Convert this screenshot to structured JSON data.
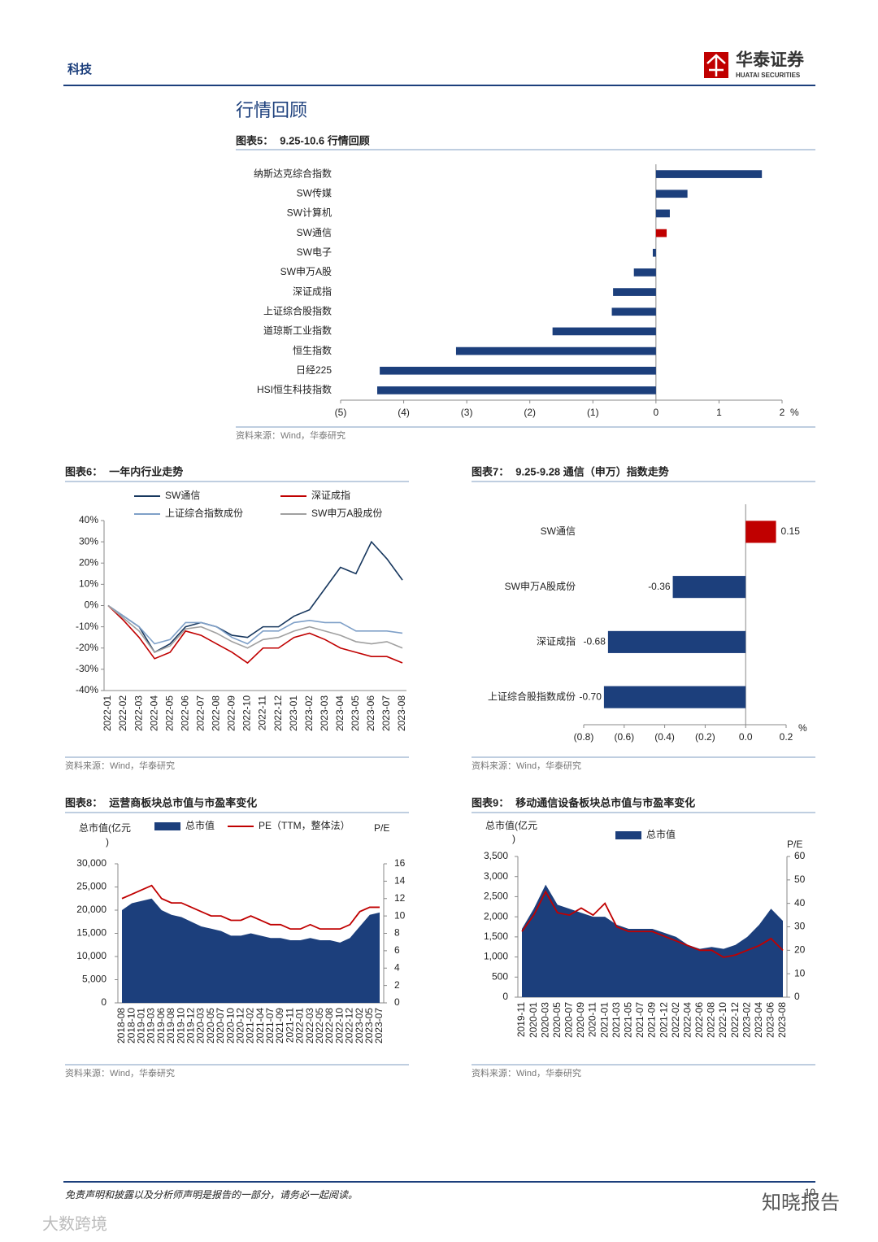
{
  "header": {
    "section": "科技",
    "company": "华泰证券",
    "company_en": "HUATAI SECURITIES"
  },
  "section_title": "行情回顾",
  "chart_data": [
    {
      "type": "bar",
      "horizontal": true,
      "label": "图表5：",
      "title": "9.25-10.6 行情回顾",
      "source": "资料来源：Wind，华泰研究",
      "categories": [
        "纳斯达克综合指数",
        "SW传媒",
        "SW计算机",
        "SW通信",
        "SW电子",
        "SW申万A股",
        "深证成指",
        "上证综合股指数",
        "道琼斯工业指数",
        "恒生指数",
        "日经225",
        "HSI恒生科技指数"
      ],
      "values": [
        1.68,
        0.5,
        0.22,
        0.17,
        -0.05,
        -0.35,
        -0.68,
        -0.7,
        -1.64,
        -3.17,
        -4.38,
        -4.42
      ],
      "colors": [
        "#1c3f7c",
        "#1c3f7c",
        "#1c3f7c",
        "#c00000",
        "#1c3f7c",
        "#1c3f7c",
        "#1c3f7c",
        "#1c3f7c",
        "#1c3f7c",
        "#1c3f7c",
        "#1c3f7c",
        "#1c3f7c"
      ],
      "xlim": [
        -5,
        2
      ],
      "xticks": [
        {
          "value": -5,
          "label": "(5)"
        },
        {
          "value": -4,
          "label": "(4)"
        },
        {
          "value": -3,
          "label": "(3)"
        },
        {
          "value": -2,
          "label": "(2)"
        },
        {
          "value": -1,
          "label": "(1)"
        },
        0,
        1,
        2
      ],
      "x_unit": "%"
    },
    {
      "type": "line",
      "label": "图表6：",
      "title": "一年内行业走势",
      "source": "资料来源：Wind，华泰研究",
      "x": [
        "2022-01",
        "2022-02",
        "2022-03",
        "2022-04",
        "2022-05",
        "2022-06",
        "2022-07",
        "2022-08",
        "2022-09",
        "2022-10",
        "2022-11",
        "2022-12",
        "2023-01",
        "2023-02",
        "2023-03",
        "2023-04",
        "2023-05",
        "2023-06",
        "2023-07",
        "2023-08"
      ],
      "series": [
        {
          "name": "SW通信",
          "color": "#17375e",
          "values": [
            0,
            -5,
            -10,
            -22,
            -18,
            -10,
            -8,
            -10,
            -14,
            -15,
            -10,
            -10,
            -5,
            -2,
            8,
            18,
            15,
            30,
            22,
            12
          ]
        },
        {
          "name": "深证成指",
          "color": "#c00000",
          "values": [
            0,
            -7,
            -15,
            -25,
            -22,
            -12,
            -14,
            -18,
            -22,
            -27,
            -20,
            -20,
            -15,
            -13,
            -16,
            -20,
            -22,
            -24,
            -24,
            -27
          ]
        },
        {
          "name": "上证综合指数成份",
          "color": "#7fa0c8",
          "values": [
            0,
            -5,
            -10,
            -18,
            -16,
            -8,
            -8,
            -10,
            -15,
            -18,
            -12,
            -12,
            -8,
            -7,
            -8,
            -8,
            -12,
            -12,
            -12,
            -13
          ]
        },
        {
          "name": "SW申万A股成份",
          "color": "#a0a0a0",
          "values": [
            0,
            -6,
            -12,
            -22,
            -19,
            -11,
            -10,
            -13,
            -17,
            -20,
            -16,
            -15,
            -12,
            -10,
            -12,
            -14,
            -17,
            -18,
            -17,
            -20
          ]
        }
      ],
      "ylim": [
        -40,
        40
      ],
      "yticks": [
        {
          "value": -40,
          "label": "-40%"
        },
        {
          "value": -30,
          "label": "-30%"
        },
        {
          "value": -20,
          "label": "-20%"
        },
        {
          "value": -10,
          "label": "-10%"
        },
        {
          "value": 0,
          "label": "0%"
        },
        {
          "value": 10,
          "label": "10%"
        },
        {
          "value": 20,
          "label": "20%"
        },
        {
          "value": 30,
          "label": "30%"
        },
        {
          "value": 40,
          "label": "40%"
        }
      ]
    },
    {
      "type": "bar",
      "horizontal": true,
      "label": "图表7：",
      "title": "9.25-9.28 通信（申万）指数走势",
      "source": "资料来源：Wind，华泰研究",
      "categories": [
        "SW通信",
        "SW申万A股成份",
        "深证成指",
        "上证综合股指数成份"
      ],
      "values": [
        0.15,
        -0.36,
        -0.68,
        -0.7
      ],
      "value_labels": [
        "0.15",
        "-0.36",
        "-0.68",
        "-0.70"
      ],
      "colors": [
        "#c00000",
        "#1c3f7c",
        "#1c3f7c",
        "#1c3f7c"
      ],
      "xlim": [
        -0.8,
        0.2
      ],
      "xticks": [
        {
          "value": -0.8,
          "label": "(0.8)"
        },
        {
          "value": -0.6,
          "label": "(0.6)"
        },
        {
          "value": -0.4,
          "label": "(0.4)"
        },
        {
          "value": -0.2,
          "label": "(0.2)"
        },
        {
          "value": 0,
          "label": "0.0"
        },
        0.2
      ],
      "x_unit": "%"
    },
    {
      "type": "area",
      "label": "图表8：",
      "title": "运营商板块总市值与市盈率变化",
      "source": "资料来源：Wind，华泰研究",
      "y_label": "总市值(亿元",
      "y_label_end": ")",
      "y2_label": "P/E",
      "x": [
        "2018-08",
        "2018-10",
        "2019-01",
        "2019-03",
        "2019-06",
        "2019-08",
        "2019-10",
        "2019-12",
        "2020-03",
        "2020-05",
        "2020-07",
        "2020-10",
        "2020-12",
        "2021-02",
        "2021-04",
        "2021-07",
        "2021-09",
        "2021-11",
        "2022-01",
        "2022-03",
        "2022-05",
        "2022-08",
        "2022-10",
        "2022-12",
        "2023-02",
        "2023-05",
        "2023-07"
      ],
      "series": [
        {
          "name": "总市值",
          "type": "area",
          "color": "#1c3f7c",
          "values": [
            20000,
            21500,
            22000,
            22500,
            20000,
            19000,
            18500,
            17500,
            16500,
            16000,
            15500,
            14500,
            14500,
            15000,
            14500,
            14000,
            14000,
            13500,
            13500,
            14000,
            13500,
            13500,
            13000,
            14000,
            16500,
            19000,
            19500
          ]
        },
        {
          "name": "PE（TTM，整体法）",
          "type": "line",
          "axis": "y2",
          "color": "#c00000",
          "values": [
            12,
            12.5,
            13,
            13.5,
            12,
            11.5,
            11.5,
            11,
            10.5,
            10,
            10,
            9.5,
            9.5,
            10,
            9.5,
            9,
            9,
            8.5,
            8.5,
            9,
            8.5,
            8.5,
            8.5,
            9,
            10.5,
            11,
            11
          ]
        }
      ],
      "ylim": [
        0,
        30000
      ],
      "yticks": [
        0,
        {
          "value": 5000,
          "label": "5,000"
        },
        {
          "value": 10000,
          "label": "10,000"
        },
        {
          "value": 15000,
          "label": "15,000"
        },
        {
          "value": 20000,
          "label": "20,000"
        },
        {
          "value": 25000,
          "label": "25,000"
        },
        {
          "value": 30000,
          "label": "30,000"
        }
      ],
      "y2lim": [
        0,
        16
      ],
      "y2ticks": [
        0,
        2,
        4,
        6,
        8,
        10,
        12,
        14,
        16
      ]
    },
    {
      "type": "area",
      "label": "图表9：",
      "title": "移动通信设备板块总市值与市盈率变化",
      "source": "资料来源：Wind，华泰研究",
      "y_label": "总市值(亿元",
      "y_label_end": ")",
      "y2_label": "P/E",
      "x": [
        "2019-11",
        "2020-01",
        "2020-03",
        "2020-05",
        "2020-07",
        "2020-09",
        "2020-11",
        "2021-01",
        "2021-03",
        "2021-05",
        "2021-07",
        "2021-09",
        "2021-12",
        "2022-02",
        "2022-04",
        "2022-06",
        "2022-08",
        "2022-10",
        "2022-12",
        "2023-02",
        "2023-04",
        "2023-06",
        "2023-08"
      ],
      "series": [
        {
          "name": "总市值",
          "type": "area",
          "color": "#1c3f7c",
          "values": [
            1700,
            2200,
            2800,
            2300,
            2200,
            2100,
            2000,
            2000,
            1800,
            1700,
            1700,
            1700,
            1600,
            1500,
            1300,
            1200,
            1250,
            1200,
            1300,
            1500,
            1800,
            2200,
            1900
          ]
        },
        {
          "type": "line",
          "axis": "y2",
          "color": "#c00000",
          "values": [
            28,
            35,
            45,
            36,
            35,
            38,
            35,
            40,
            30,
            28,
            28,
            28,
            26,
            24,
            22,
            20,
            20,
            17,
            18,
            20,
            22,
            25,
            20
          ]
        }
      ],
      "ylim": [
        0,
        3500
      ],
      "yticks": [
        0,
        500,
        {
          "value": 1000,
          "label": "1,000"
        },
        {
          "value": 1500,
          "label": "1,500"
        },
        {
          "value": 2000,
          "label": "2,000"
        },
        {
          "value": 2500,
          "label": "2,500"
        },
        {
          "value": 3000,
          "label": "3,000"
        },
        {
          "value": 3500,
          "label": "3,500"
        }
      ],
      "y2lim": [
        0,
        60
      ],
      "y2ticks": [
        0,
        10,
        20,
        30,
        40,
        50,
        60
      ]
    }
  ],
  "footer": {
    "disclaimer": "免责声明和披露以及分析师声明是报告的一部分，请务必一起阅读。",
    "page": 10
  },
  "watermarks": [
    "知晓报告",
    "大数跨境"
  ]
}
